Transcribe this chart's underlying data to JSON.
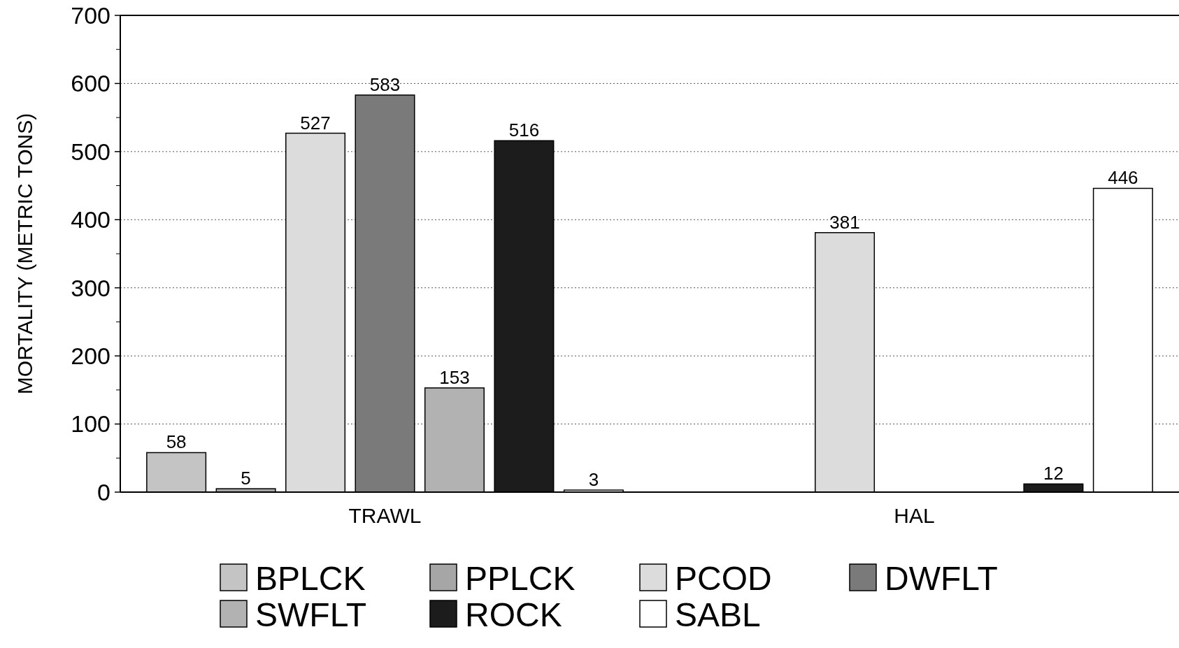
{
  "chart_data": {
    "type": "bar",
    "categories": [
      "TRAWL",
      "HAL"
    ],
    "ylabel": "MORTALITY (METRIC TONS)",
    "ylim": [
      0,
      700
    ],
    "yticks": [
      0,
      100,
      200,
      300,
      400,
      500,
      600,
      700
    ],
    "grid": "y",
    "legend": "bottom",
    "data_labels": true,
    "series": [
      {
        "name": "BPLCK",
        "color": "#c4c4c4",
        "values": [
          58,
          null
        ]
      },
      {
        "name": "PPLCK",
        "color": "#a6a6a6",
        "values": [
          5,
          null
        ]
      },
      {
        "name": "PCOD",
        "color": "#dcdcdc",
        "values": [
          527,
          381
        ]
      },
      {
        "name": "DWFLT",
        "color": "#7a7a7a",
        "values": [
          583,
          null
        ]
      },
      {
        "name": "SWFLT",
        "color": "#b2b2b2",
        "values": [
          153,
          null
        ]
      },
      {
        "name": "ROCK",
        "color": "#1c1c1c",
        "values": [
          516,
          12
        ]
      },
      {
        "name": "SABL",
        "color": "#ffffff",
        "values": [
          3,
          446
        ]
      }
    ]
  }
}
